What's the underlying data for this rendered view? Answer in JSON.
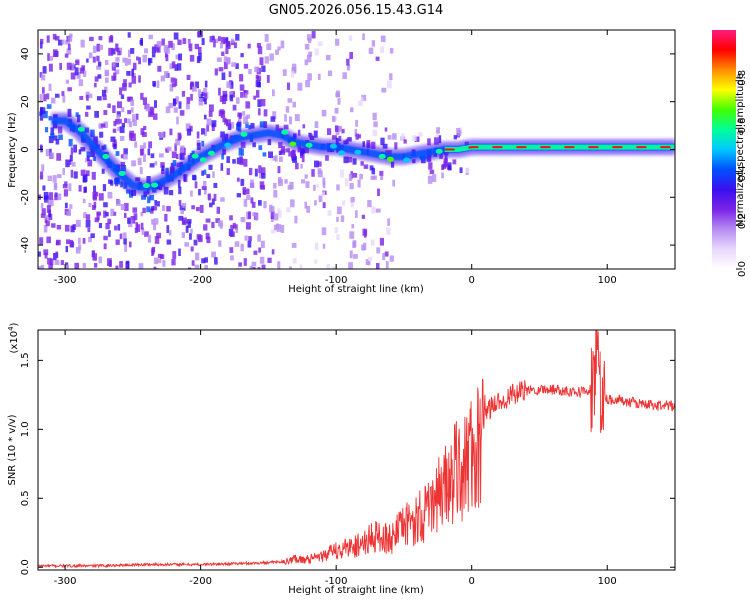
{
  "title": "GN05.2026.056.15.43.G14",
  "chart_data": [
    {
      "type": "heatmap",
      "title": "GN05.2026.056.15.43.G14",
      "xlabel": "Height of straight line (km)",
      "ylabel": "Frequency (Hz)",
      "xlim": [
        -320,
        150
      ],
      "ylim": [
        -50,
        50
      ],
      "xticks": [
        -300,
        -200,
        -100,
        0,
        100
      ],
      "yticks": [
        -40,
        -20,
        0,
        20,
        40
      ],
      "ridge_trace": {
        "x": [
          -300,
          -290,
          -280,
          -270,
          -260,
          -250,
          -240,
          -230,
          -220,
          -210,
          -200,
          -190,
          -180,
          -170,
          -160,
          -150,
          -140,
          -130,
          -120,
          -110,
          -100,
          -90,
          -80,
          -70,
          -60,
          -50,
          -40,
          -30,
          -20,
          -10,
          0,
          20,
          40,
          60,
          80,
          100,
          120,
          150
        ],
        "y": [
          12,
          8,
          2,
          -4,
          -10,
          -15,
          -16,
          -14,
          -11,
          -7,
          -3,
          0,
          3,
          5,
          6,
          7,
          6,
          3,
          2,
          1,
          1,
          0,
          -1,
          -2,
          -3,
          -3,
          -2,
          -1,
          0,
          0,
          1,
          1,
          1,
          1,
          1,
          1,
          1,
          1
        ]
      },
      "colorbar": {
        "label": "Normalized spectral amplitude",
        "range": [
          0,
          1
        ],
        "ticks": [
          "0.0",
          "0.2",
          "0.4",
          "0.6",
          "0.8"
        ],
        "colors": [
          "#ffffff",
          "#e9d8fb",
          "#b58cf2",
          "#7a22e6",
          "#3a10f0",
          "#0050ff",
          "#00c8ff",
          "#00ff9a",
          "#44ff00",
          "#ffff00",
          "#ff8c00",
          "#ff0000",
          "#ff1a80"
        ]
      }
    },
    {
      "type": "line",
      "xlabel": "Height of straight line (km)",
      "ylabel": "SNR (10 * v/v)",
      "y_exponent": "(x10",
      "y_exponent_power": "4",
      "y_exponent_close": ")",
      "xlim": [
        -320,
        150
      ],
      "ylim": [
        -0.02,
        1.72
      ],
      "xticks": [
        -300,
        -200,
        -100,
        0,
        100
      ],
      "yticks": [
        "0.0",
        "0.5",
        "1.0",
        "1.5"
      ],
      "color": "#ee3333",
      "series": [
        {
          "name": "SNR",
          "x": [
            -320,
            -280,
            -240,
            -200,
            -160,
            -140,
            -130,
            -120,
            -110,
            -100,
            -90,
            -80,
            -70,
            -60,
            -50,
            -40,
            -30,
            -25,
            -20,
            -15,
            -10,
            -5,
            0,
            5,
            10,
            15,
            20,
            30,
            40,
            50,
            60,
            70,
            80,
            85,
            90,
            93,
            95,
            98,
            100,
            110,
            120,
            130,
            140,
            150
          ],
          "y": [
            0.01,
            0.01,
            0.02,
            0.02,
            0.03,
            0.04,
            0.08,
            0.07,
            0.1,
            0.15,
            0.18,
            0.22,
            0.28,
            0.26,
            0.36,
            0.45,
            0.52,
            0.7,
            0.72,
            0.8,
            0.88,
            0.95,
            1.0,
            1.06,
            1.12,
            1.17,
            1.2,
            1.25,
            1.28,
            1.29,
            1.29,
            1.28,
            1.27,
            1.28,
            1.3,
            1.62,
            1.3,
            1.23,
            1.22,
            1.21,
            1.19,
            1.18,
            1.17,
            1.17
          ]
        }
      ]
    }
  ]
}
